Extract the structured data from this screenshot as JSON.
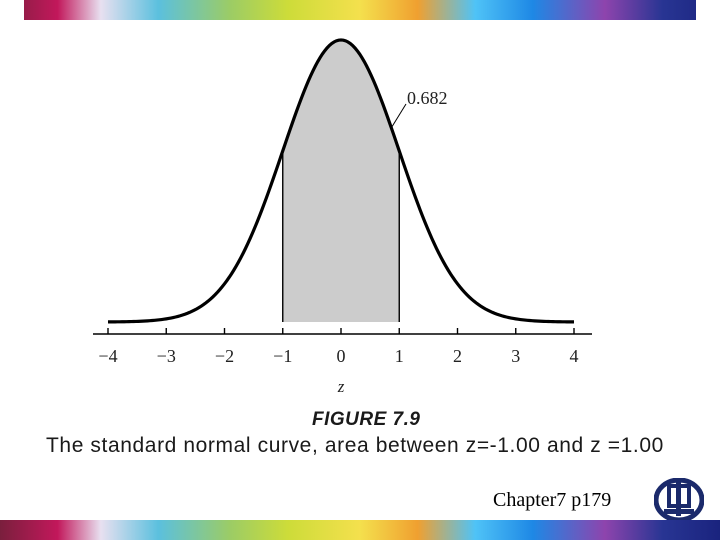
{
  "chart_data": {
    "type": "area",
    "title": "",
    "xlabel": "z",
    "ylabel": "",
    "xlim": [
      -4,
      4
    ],
    "x_ticks": [
      -4,
      -3,
      -2,
      -1,
      0,
      1,
      2,
      3,
      4
    ],
    "x_tick_labels": [
      "−4",
      "−3",
      "−2",
      "−1",
      "0",
      "1",
      "2",
      "3",
      "4"
    ],
    "series": [
      {
        "x": [
          -4,
          -3.5,
          -3,
          -2.5,
          -2,
          -1.5,
          -1,
          -0.5,
          0,
          0.5,
          1,
          1.5,
          2,
          2.5,
          3,
          3.5,
          4
        ],
        "values": [
          0.0001,
          0.0009,
          0.0044,
          0.0175,
          0.054,
          0.1295,
          0.242,
          0.3521,
          0.3989,
          0.3521,
          0.242,
          0.1295,
          0.054,
          0.0175,
          0.0044,
          0.0009,
          0.0001
        ]
      }
    ],
    "shaded_region": {
      "from": -1,
      "to": 1,
      "color": "#cccccc"
    },
    "annotations": [
      {
        "text": "0.682",
        "x": 0.85,
        "y": 0.27
      }
    ],
    "grid": false,
    "legend": "none"
  },
  "figure_label": "FIGURE 7.9",
  "caption": "The standard normal curve, area between z=-1.00 and z =1.00",
  "footer": {
    "chapter_ref": "Chapter7 p179",
    "logo_icon": "university-logo-icon"
  },
  "colors": {
    "curve": "#000000",
    "shade": "#cccccc",
    "logo": "#1b2a6b"
  }
}
